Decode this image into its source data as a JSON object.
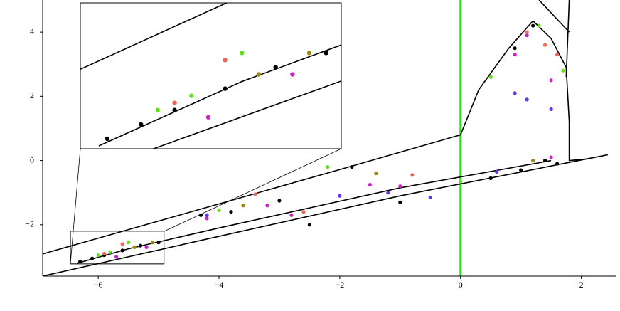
{
  "chart_data": {
    "type": "line",
    "xlim": [
      -6.92,
      2.57
    ],
    "ylim": [
      -3.6,
      5.0
    ],
    "xticks": [
      {
        "value": -6,
        "label": "−6"
      },
      {
        "value": -4,
        "label": "−4"
      },
      {
        "value": -2,
        "label": "−2"
      },
      0,
      2
    ],
    "yticks": [
      {
        "value": -2,
        "label": "−2"
      },
      0,
      2,
      4
    ],
    "inset": {
      "xlim": [
        -6.46,
        -4.91
      ],
      "ylim": [
        -3.22,
        -2.2
      ]
    },
    "series": [
      {
        "type": "line",
        "color": "#33dd22",
        "x": [
          0,
          0
        ],
        "values": [
          -3.6,
          5.0
        ]
      },
      {
        "type": "line",
        "color": "#000000",
        "x": [
          -6.92,
          -4,
          -2,
          0
        ],
        "values": [
          -2.91,
          -1.35,
          -0.28,
          0.8
        ]
      },
      {
        "type": "line",
        "color": "#000000",
        "x": [
          -6.92,
          -4,
          -1,
          2.44
        ],
        "values": [
          -3.6,
          -2.36,
          -1.1,
          0.18
        ]
      },
      {
        "type": "line",
        "color": "#000000",
        "x": [
          0,
          0.3,
          0.8,
          1.2,
          1.5,
          1.75,
          1.8,
          1.8,
          2.1
        ],
        "values": [
          0.8,
          2.2,
          3.5,
          4.35,
          3.8,
          2.9,
          1.2,
          0.0,
          0.05
        ]
      },
      {
        "type": "line",
        "color": "#000000",
        "x": [
          -6.35,
          -5.5,
          -4,
          -1,
          1.5
        ],
        "values": [
          -3.2,
          -2.75,
          -2.1,
          -0.85,
          0.0
        ]
      },
      {
        "type": "line",
        "color": "#000000",
        "x": [
          1.8,
          1.75
        ],
        "values": [
          5.0,
          2.6
        ]
      },
      {
        "type": "line",
        "color": "#000000",
        "x": [
          1.3,
          1.8
        ],
        "values": [
          5.0,
          4.0
        ]
      },
      {
        "type": "scatter",
        "color": "#000000",
        "x": [
          -6.3,
          -6.1,
          -5.9,
          -5.6,
          -5.3,
          -5.0,
          -4.3,
          -3.8,
          -3.0,
          -2.5,
          -1.8,
          -1.0,
          0.5,
          1.0,
          1.4,
          1.6,
          0.9,
          1.2
        ],
        "values": [
          -3.15,
          -3.05,
          -2.95,
          -2.8,
          -2.65,
          -2.55,
          -1.7,
          -1.6,
          -1.25,
          -2.0,
          -0.2,
          -1.3,
          -0.55,
          -0.3,
          0.0,
          -0.1,
          3.5,
          4.2
        ]
      },
      {
        "type": "scatter",
        "color": "#cc22cc",
        "x": [
          -5.7,
          -5.2,
          -4.2,
          -3.2,
          -2.8,
          -1.0,
          0.9,
          1.1,
          1.5,
          1.5,
          -1.5
        ],
        "values": [
          -3.0,
          -2.7,
          -1.8,
          -1.4,
          -1.7,
          -0.8,
          3.3,
          3.9,
          2.5,
          0.1,
          -0.75
        ]
      },
      {
        "type": "scatter",
        "color": "#6633ee",
        "x": [
          -4.2,
          -2.0,
          -1.2,
          -0.5,
          0.6,
          0.9,
          1.1,
          1.5
        ],
        "values": [
          -1.7,
          -1.1,
          -1.0,
          -1.15,
          -0.35,
          2.1,
          1.9,
          1.6
        ]
      },
      {
        "type": "scatter",
        "color": "#ee6655",
        "x": [
          -5.9,
          -5.6,
          -3.4,
          -2.6,
          -0.8,
          1.1,
          1.4,
          1.6
        ],
        "values": [
          -2.9,
          -2.6,
          -1.05,
          -1.6,
          -0.45,
          4.0,
          3.6,
          3.3
        ]
      },
      {
        "type": "scatter",
        "color": "#66dd22",
        "x": [
          -6.0,
          -5.8,
          -5.5,
          -4.0,
          -2.2,
          0.0,
          0.5,
          1.3,
          1.7
        ],
        "values": [
          -2.95,
          -2.85,
          -2.55,
          -1.55,
          -0.2,
          -0.65,
          2.6,
          4.2,
          2.8
        ]
      },
      {
        "type": "scatter",
        "color": "#998811",
        "x": [
          -5.4,
          -5.1,
          -3.6,
          -1.4,
          1.2
        ],
        "values": [
          -2.7,
          -2.55,
          -1.4,
          -0.4,
          0.0
        ]
      }
    ]
  }
}
